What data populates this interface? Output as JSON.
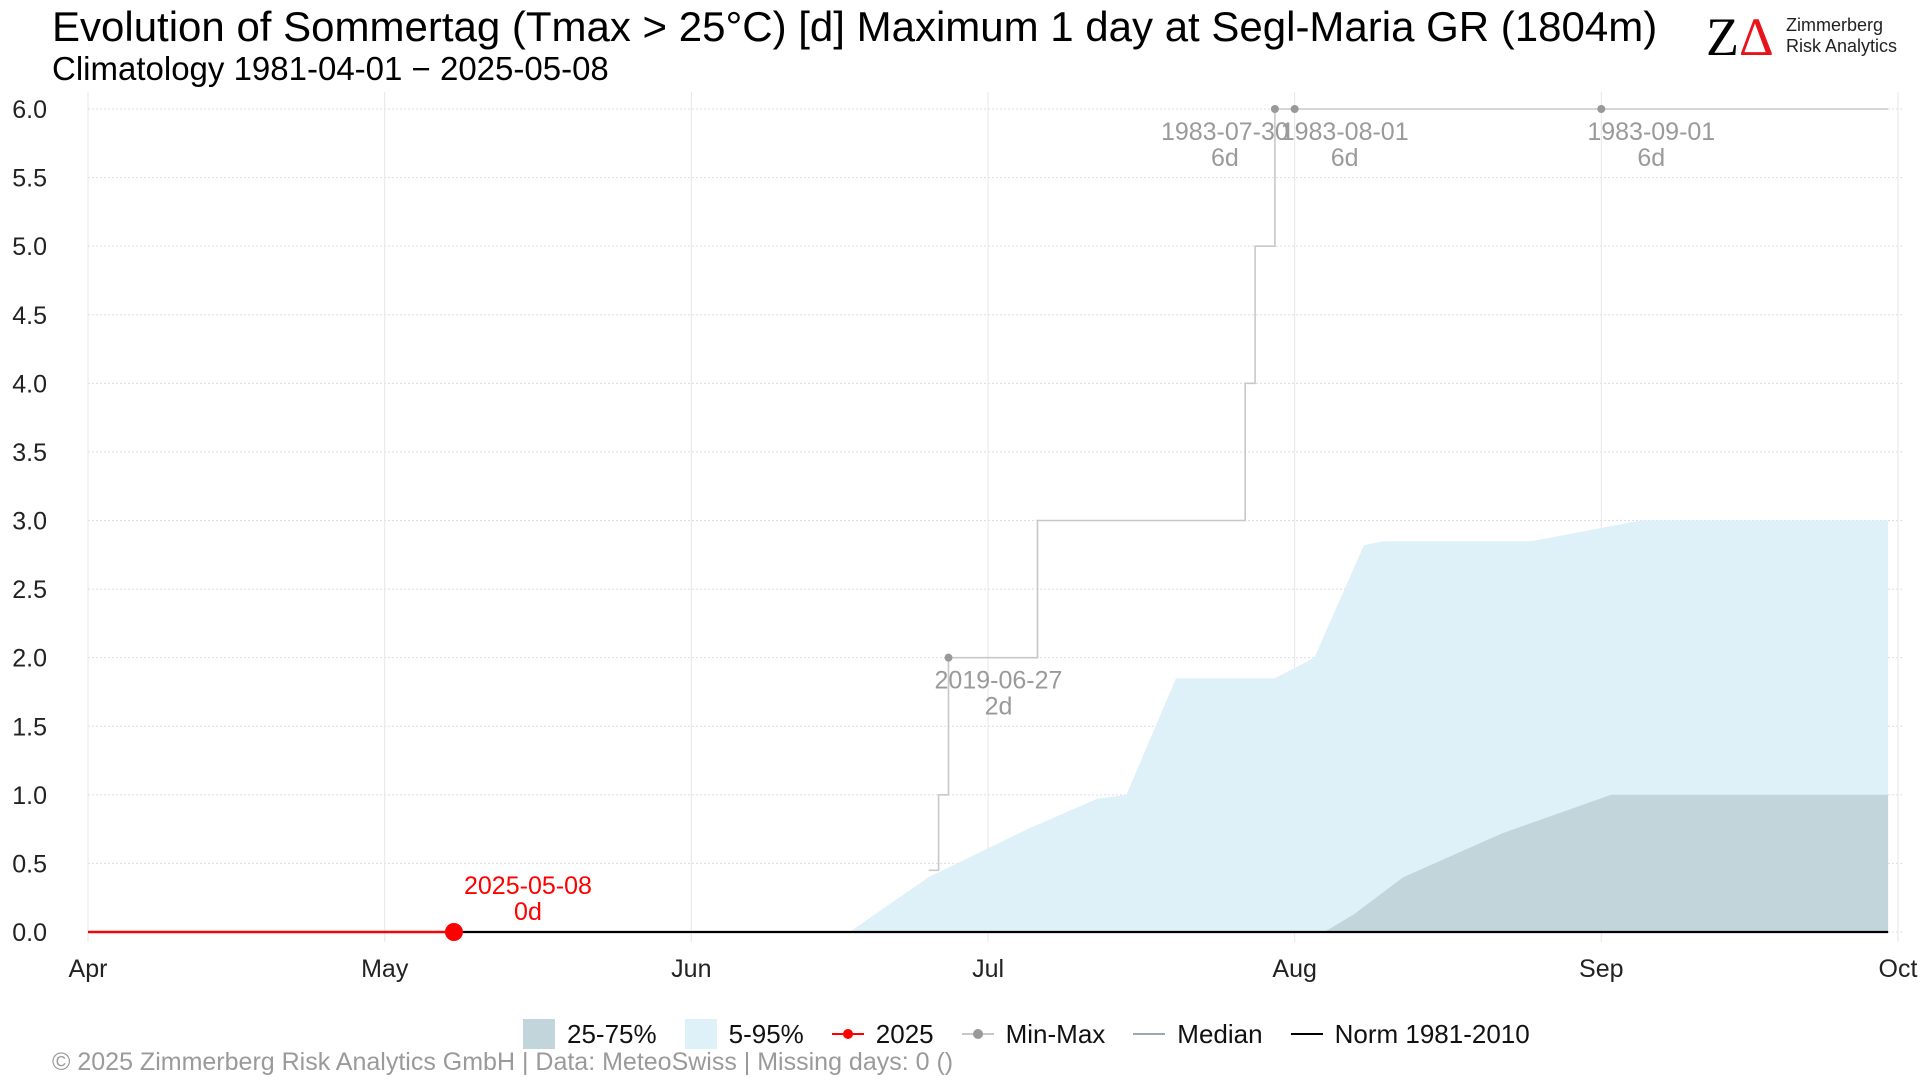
{
  "header": {
    "title": "Evolution of Sommertag (Tmax > 25°C) [d] Maximum 1 day at Segl-Maria  GR (1804m)",
    "subtitle": "Climatology 1981-04-01 − 2025-05-08"
  },
  "logo": {
    "mark_z": "Z",
    "mark_delta": "Δ",
    "line1": "Zimmerberg",
    "line2": "Risk Analytics"
  },
  "legend": {
    "iqr": "25-75%",
    "p90": "5-95%",
    "current": "2025",
    "minmax": "Min-Max",
    "median": "Median",
    "norm": "Norm 1981-2010"
  },
  "footer": {
    "text": "©  2025 Zimmerberg Risk Analytics GmbH | Data: MeteoSwiss | Missing days: 0 ()"
  },
  "colors": {
    "band_5_95": "#def0f8",
    "band_25_75": "#c2d5da",
    "current_year": "#ff0000",
    "min_max": "#999999",
    "max_line": "#c8c8c8",
    "median": "#9aa8b4",
    "norm": "#000000",
    "grid": "#dddddd",
    "annotation": "#9a9a9a"
  },
  "chart_data": {
    "type": "area",
    "title": "Evolution of Sommertag (Tmax > 25°C) [d] Maximum 1 day at Segl-Maria  GR (1804m)",
    "subtitle": "Climatology 1981-04-01 − 2025-05-08",
    "xlabel": "",
    "ylabel": "",
    "x_range": [
      "2025-04-01",
      "2025-10-01"
    ],
    "x_ticks": [
      {
        "date": "2025-04-01",
        "label": "Apr"
      },
      {
        "date": "2025-05-01",
        "label": "May"
      },
      {
        "date": "2025-06-01",
        "label": "Jun"
      },
      {
        "date": "2025-07-01",
        "label": "Jul"
      },
      {
        "date": "2025-08-01",
        "label": "Aug"
      },
      {
        "date": "2025-09-01",
        "label": "Sep"
      },
      {
        "date": "2025-10-01",
        "label": "Oct"
      }
    ],
    "ylim": [
      0,
      6
    ],
    "y_ticks": [
      0.0,
      0.5,
      1.0,
      1.5,
      2.0,
      2.5,
      3.0,
      3.5,
      4.0,
      4.5,
      5.0,
      5.5,
      6.0
    ],
    "y_tick_labels": [
      "0.0",
      "0.5",
      "1.0",
      "1.5",
      "2.0",
      "2.5",
      "3.0",
      "3.5",
      "4.0",
      "4.5",
      "5.0",
      "5.5",
      "6.0"
    ],
    "grid": true,
    "legend_position": "bottom",
    "band_5_95": {
      "name": "5-95%",
      "x": [
        "2025-04-01",
        "2025-06-17",
        "2025-06-20",
        "2025-06-25",
        "2025-07-05",
        "2025-07-12",
        "2025-07-15",
        "2025-07-20",
        "2025-07-30",
        "2025-08-03",
        "2025-08-08",
        "2025-08-10",
        "2025-08-25",
        "2025-09-05",
        "2025-09-10",
        "2025-09-30"
      ],
      "upper": [
        0,
        0,
        0.15,
        0.4,
        0.75,
        0.97,
        1.0,
        1.85,
        1.85,
        2.0,
        2.82,
        2.85,
        2.85,
        3.0,
        3.0,
        3.0
      ],
      "lower": [
        0,
        0,
        0,
        0,
        0,
        0,
        0,
        0,
        0,
        0,
        0,
        0,
        0,
        0,
        0,
        0
      ]
    },
    "band_25_75": {
      "name": "25-75%",
      "x": [
        "2025-04-01",
        "2025-08-04",
        "2025-08-07",
        "2025-08-12",
        "2025-08-22",
        "2025-09-02",
        "2025-09-30"
      ],
      "upper": [
        0,
        0,
        0.13,
        0.4,
        0.72,
        1.0,
        1.0
      ],
      "lower": [
        0,
        0,
        0,
        0,
        0,
        0,
        0
      ]
    },
    "max_line": {
      "name": "Min-Max",
      "x": [
        "2025-06-25",
        "2025-06-26",
        "2025-06-26",
        "2025-06-27",
        "2025-06-27",
        "2025-07-06",
        "2025-07-06",
        "2025-07-27",
        "2025-07-27",
        "2025-07-28",
        "2025-07-28",
        "2025-07-30",
        "2025-07-30",
        "2025-09-30"
      ],
      "y": [
        0.45,
        0.45,
        1,
        1,
        2,
        2,
        3,
        3,
        4,
        4,
        5,
        5,
        6,
        6
      ]
    },
    "max_points": [
      {
        "x": "2025-06-27",
        "y": 2,
        "label_date": "2019-06-27",
        "label_value": "2d",
        "label_side": "right"
      },
      {
        "x": "2025-07-30",
        "y": 6,
        "label_date": "1983-07-30",
        "label_value": "6d",
        "label_side": "left"
      },
      {
        "x": "2025-08-01",
        "y": 6,
        "label_date": "1983-08-01",
        "label_value": "6d",
        "label_side": "right"
      },
      {
        "x": "2025-09-01",
        "y": 6,
        "label_date": "1983-09-01",
        "label_value": "6d",
        "label_side": "right"
      }
    ],
    "norm": {
      "name": "Norm 1981-2010",
      "x": [
        "2025-04-01",
        "2025-09-30"
      ],
      "y": [
        0,
        0
      ]
    },
    "median": {
      "name": "Median",
      "x": [
        "2025-04-01",
        "2025-09-30"
      ],
      "y": [
        0,
        0
      ]
    },
    "current": {
      "name": "2025",
      "x": [
        "2025-04-01",
        "2025-05-08"
      ],
      "y": [
        0,
        0
      ],
      "last_point": {
        "x": "2025-05-08",
        "y": 0,
        "label_date": "2025-05-08",
        "label_value": "0d"
      }
    }
  }
}
